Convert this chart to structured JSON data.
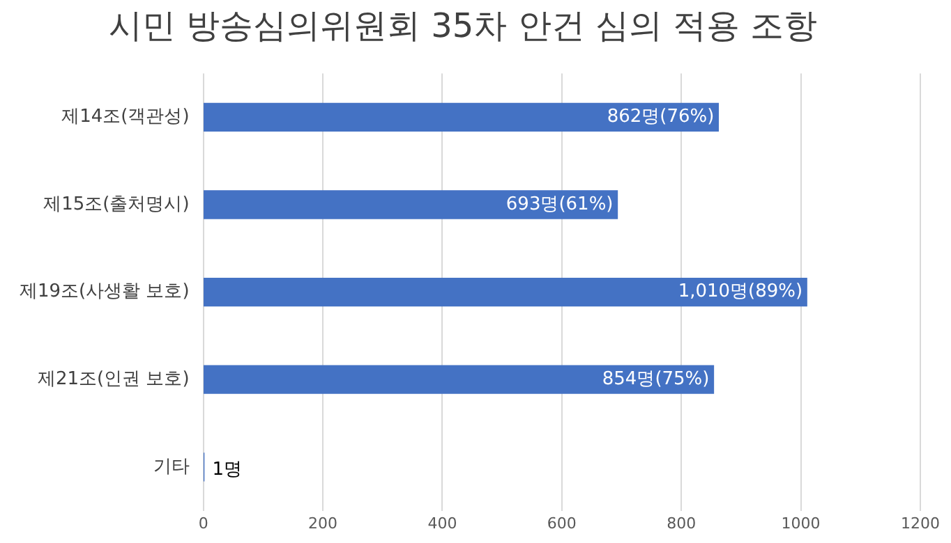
{
  "chart_data": {
    "type": "bar",
    "title": "시민 방송심의위원회 35차 안건 심의 적용 조항",
    "orientation": "horizontal",
    "categories": [
      "제14조(객관성)",
      "제15조(출처명시)",
      "제19조(사생활 보호)",
      "제21조(인권 보호)",
      "기타"
    ],
    "values": [
      862,
      693,
      1010,
      854,
      1
    ],
    "value_labels": [
      "862명(76%)",
      "693명(61%)",
      "1,010명(89%)",
      "854명(75%)",
      "1명"
    ],
    "color": "#4472c4",
    "xlim": [
      0,
      1200
    ],
    "xticks": [
      0,
      200,
      400,
      600,
      800,
      1000,
      1200
    ],
    "grid": "x"
  }
}
